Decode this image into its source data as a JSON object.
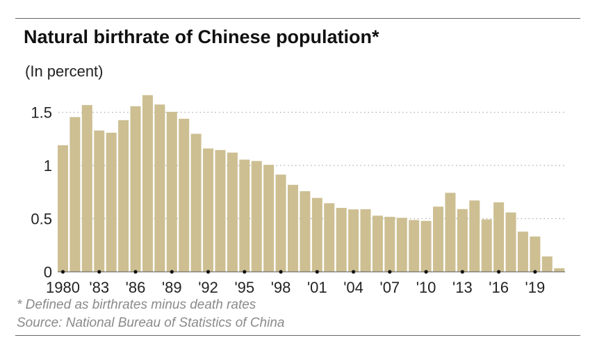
{
  "chart_data": {
    "type": "bar",
    "title": "Natural birthrate of Chinese population*",
    "subtitle": "(In percent)",
    "x": [
      1980,
      1981,
      1982,
      1983,
      1984,
      1985,
      1986,
      1987,
      1988,
      1989,
      1990,
      1991,
      1992,
      1993,
      1994,
      1995,
      1996,
      1997,
      1998,
      1999,
      2000,
      2001,
      2002,
      2003,
      2004,
      2005,
      2006,
      2007,
      2008,
      2009,
      2010,
      2011,
      2012,
      2013,
      2014,
      2015,
      2016,
      2017,
      2018,
      2019,
      2020,
      2021
    ],
    "values": [
      1.19,
      1.455,
      1.568,
      1.329,
      1.308,
      1.426,
      1.557,
      1.661,
      1.573,
      1.504,
      1.439,
      1.298,
      1.16,
      1.145,
      1.121,
      1.055,
      1.042,
      1.006,
      0.914,
      0.818,
      0.758,
      0.695,
      0.645,
      0.601,
      0.587,
      0.589,
      0.528,
      0.517,
      0.508,
      0.487,
      0.479,
      0.613,
      0.743,
      0.59,
      0.671,
      0.493,
      0.653,
      0.558,
      0.378,
      0.332,
      0.145,
      0.034
    ],
    "y_ticks": [
      "0",
      "0.5",
      "1",
      "1.5"
    ],
    "y_tick_values": [
      0,
      0.5,
      1,
      1.5
    ],
    "x_tick_labels": [
      "1980",
      "'83",
      "'86",
      "'89",
      "'92",
      "'95",
      "'98",
      "'01",
      "'04",
      "'07",
      "'10",
      "'13",
      "'16",
      "'19"
    ],
    "ylim": [
      0,
      1.75
    ],
    "grid": "horizontal dotted",
    "bar_color": "#cdbf92",
    "footnote": "* Defined as birthrates minus death rates",
    "source": "Source: National Bureau of Statistics of China"
  }
}
